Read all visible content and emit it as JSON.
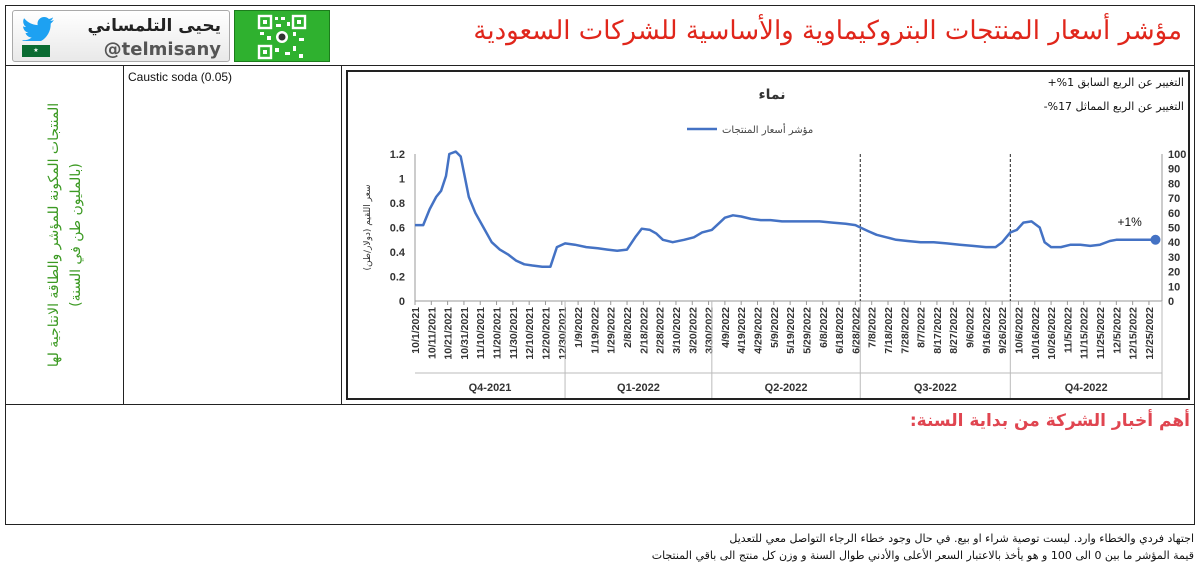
{
  "header": {
    "title": "مؤشر أسعار المنتجات البتروكيماوية والأساسية للشركات السعودية",
    "brand_name": "يحيى التلمساني",
    "brand_handle": "@telmisany",
    "twitter_icon": "twitter-bird-icon",
    "qr_icon": "qr-code-icon",
    "twitter_color": "#1da1f2",
    "qr_color": "#2fb12f"
  },
  "side_label": "المنتجات المكونة للمؤشر والطاقة الانتاجية لها (بالمليون طن في السنة)",
  "series_panel": {
    "items": [
      "Caustic soda (0.05)"
    ]
  },
  "stats": {
    "qoq": "التغيير عن الربع السابق 1%+",
    "yoy": "التغيير عن الربع المماثل 17%-"
  },
  "chart_data": {
    "type": "line",
    "title": "نماء",
    "legend": {
      "label": "مؤشر أسعار المنتجات",
      "position": "top"
    },
    "ylabel_left": "سعر اللقيم (دولار/طن)",
    "y_left": {
      "min": 0,
      "max": 1.2,
      "ticks": [
        "0",
        "0.2",
        "0.4",
        "0.6",
        "0.8",
        "1",
        "1.2"
      ]
    },
    "y_right": {
      "min": 0,
      "max": 100,
      "ticks": [
        "0",
        "10",
        "20",
        "30",
        "40",
        "50",
        "60",
        "70",
        "80",
        "90",
        "100"
      ]
    },
    "x_ticks": [
      "10/1/2021",
      "10/11/2021",
      "10/21/2021",
      "10/31/2021",
      "11/10/2021",
      "11/20/2021",
      "11/30/2021",
      "12/10/2021",
      "12/20/2021",
      "12/30/2021",
      "1/9/2022",
      "1/19/2022",
      "1/29/2022",
      "2/8/2022",
      "2/18/2022",
      "2/28/2022",
      "3/10/2022",
      "3/20/2022",
      "3/30/2022",
      "4/9/2022",
      "4/19/2022",
      "4/29/2022",
      "5/9/2022",
      "5/19/2022",
      "5/29/2022",
      "6/8/2022",
      "6/18/2022",
      "6/28/2022",
      "7/8/2022",
      "7/18/2022",
      "7/28/2022",
      "8/7/2022",
      "8/17/2022",
      "8/27/2022",
      "9/6/2022",
      "9/16/2022",
      "9/26/2022",
      "10/6/2022",
      "10/16/2022",
      "10/26/2022",
      "11/5/2022",
      "11/15/2022",
      "11/25/2022",
      "12/5/2022",
      "12/15/2022",
      "12/25/2022"
    ],
    "quarters": [
      {
        "label": "Q4-2021",
        "from": 0,
        "to": 9.2
      },
      {
        "label": "Q1-2022",
        "from": 9.2,
        "to": 18.2
      },
      {
        "label": "Q2-2022",
        "from": 18.2,
        "to": 27.3
      },
      {
        "label": "Q3-2022",
        "from": 27.3,
        "to": 36.5
      },
      {
        "label": "Q4-2022",
        "from": 36.5,
        "to": 45.8
      }
    ],
    "dashed_lines_at": [
      27.3,
      36.5
    ],
    "series": [
      {
        "name": "مؤشر أسعار المنتجات",
        "color": "#4472c4",
        "points": [
          [
            0,
            0.62
          ],
          [
            0.5,
            0.62
          ],
          [
            0.9,
            0.75
          ],
          [
            1.3,
            0.85
          ],
          [
            1.6,
            0.9
          ],
          [
            1.9,
            1.02
          ],
          [
            2.1,
            1.2
          ],
          [
            2.5,
            1.22
          ],
          [
            2.8,
            1.18
          ],
          [
            3.0,
            1.05
          ],
          [
            3.3,
            0.85
          ],
          [
            3.7,
            0.72
          ],
          [
            4.2,
            0.6
          ],
          [
            4.7,
            0.48
          ],
          [
            5.2,
            0.42
          ],
          [
            5.7,
            0.38
          ],
          [
            6.2,
            0.33
          ],
          [
            6.7,
            0.3
          ],
          [
            7.2,
            0.29
          ],
          [
            7.8,
            0.28
          ],
          [
            8.3,
            0.28
          ],
          [
            8.7,
            0.44
          ],
          [
            9.2,
            0.47
          ],
          [
            9.8,
            0.46
          ],
          [
            10.5,
            0.44
          ],
          [
            11.2,
            0.43
          ],
          [
            11.8,
            0.42
          ],
          [
            12.4,
            0.41
          ],
          [
            13.0,
            0.42
          ],
          [
            13.5,
            0.52
          ],
          [
            13.9,
            0.59
          ],
          [
            14.4,
            0.58
          ],
          [
            14.8,
            0.55
          ],
          [
            15.2,
            0.5
          ],
          [
            15.8,
            0.48
          ],
          [
            16.5,
            0.5
          ],
          [
            17.1,
            0.52
          ],
          [
            17.6,
            0.56
          ],
          [
            18.2,
            0.58
          ],
          [
            18.6,
            0.63
          ],
          [
            19.0,
            0.68
          ],
          [
            19.5,
            0.7
          ],
          [
            20.0,
            0.69
          ],
          [
            20.6,
            0.67
          ],
          [
            21.2,
            0.66
          ],
          [
            21.8,
            0.66
          ],
          [
            22.5,
            0.65
          ],
          [
            23.2,
            0.65
          ],
          [
            24.0,
            0.65
          ],
          [
            24.8,
            0.65
          ],
          [
            25.6,
            0.64
          ],
          [
            26.4,
            0.63
          ],
          [
            27.0,
            0.62
          ],
          [
            27.3,
            0.6
          ],
          [
            27.8,
            0.57
          ],
          [
            28.3,
            0.54
          ],
          [
            28.9,
            0.52
          ],
          [
            29.5,
            0.5
          ],
          [
            30.2,
            0.49
          ],
          [
            31.0,
            0.48
          ],
          [
            31.8,
            0.48
          ],
          [
            32.6,
            0.47
          ],
          [
            33.4,
            0.46
          ],
          [
            34.2,
            0.45
          ],
          [
            35.0,
            0.44
          ],
          [
            35.6,
            0.44
          ],
          [
            36.0,
            0.48
          ],
          [
            36.5,
            0.56
          ],
          [
            36.9,
            0.58
          ],
          [
            37.3,
            0.64
          ],
          [
            37.8,
            0.65
          ],
          [
            38.3,
            0.6
          ],
          [
            38.6,
            0.48
          ],
          [
            39.0,
            0.44
          ],
          [
            39.6,
            0.44
          ],
          [
            40.2,
            0.46
          ],
          [
            40.8,
            0.46
          ],
          [
            41.4,
            0.45
          ],
          [
            42.0,
            0.46
          ],
          [
            42.6,
            0.49
          ],
          [
            43.0,
            0.5
          ],
          [
            43.6,
            0.5
          ],
          [
            44.2,
            0.5
          ],
          [
            44.8,
            0.5
          ],
          [
            45.4,
            0.5
          ]
        ]
      }
    ],
    "annotation": {
      "label": "+1%",
      "x": 45.4,
      "y": 0.5
    }
  },
  "news": {
    "title": "أهم أخبار الشركة من بداية السنة:"
  },
  "footer": {
    "line1": "اجتهاد فردي والخطاء وارد. ليست توصية شراء او بيع. في حال وجود خطاء الرجاء التواصل معي للتعديل",
    "line2": "قيمة المؤشر ما بين 0 الى 100 و هو يأخذ بالاعتبار السعر الأعلى والأدني طوال السنة و وزن كل منتج الى باقي المنتجات"
  }
}
